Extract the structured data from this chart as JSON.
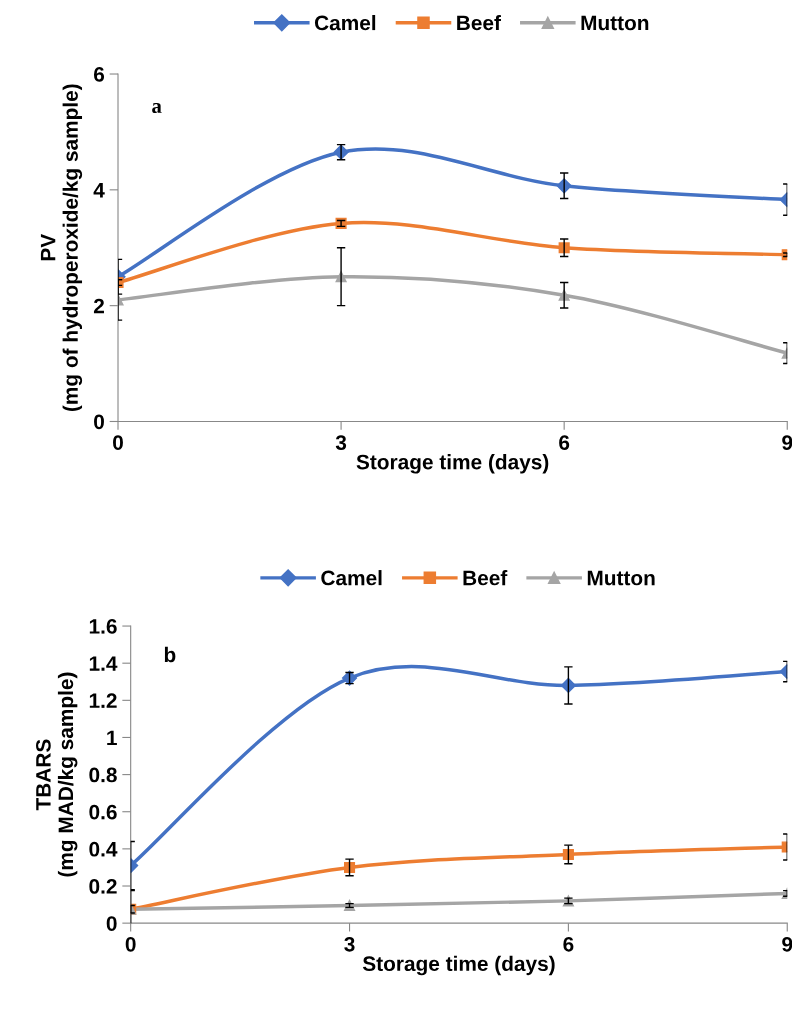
{
  "chart_data": [
    {
      "type": "line",
      "xlabel": "Storage time (days)",
      "ylabel": "PV\n(mg of hydroperoxide/kg sample)",
      "annotations": [
        "a"
      ],
      "xlim": [
        0,
        9
      ],
      "xticks": [
        0,
        3,
        6,
        9
      ],
      "ylim": [
        0,
        6
      ],
      "yticks": [
        0,
        2,
        4,
        6
      ],
      "grid": false,
      "legend": "top",
      "x": [
        0,
        3,
        6,
        9
      ],
      "series": [
        {
          "name": "Camel",
          "color": "#4472c4",
          "marker": "diamond",
          "values": [
            2.5,
            4.65,
            4.07,
            3.83
          ],
          "errors": [
            0.3,
            0.13,
            0.22,
            0.27
          ]
        },
        {
          "name": "Beef",
          "color": "#ed7d31",
          "marker": "square",
          "values": [
            2.4,
            3.42,
            3.0,
            2.88
          ],
          "errors": [
            0.05,
            0.05,
            0.15,
            0.03
          ]
        },
        {
          "name": "Mutton",
          "color": "#a5a5a5",
          "marker": "triangle",
          "values": [
            2.1,
            2.5,
            2.18,
            1.18
          ],
          "errors": [
            0.35,
            0.5,
            0.22,
            0.18
          ]
        }
      ]
    },
    {
      "type": "line",
      "xlabel": "Storage time (days)",
      "ylabel": "TBARS\n(mg MAD/kg sample)",
      "annotations": [
        "b"
      ],
      "xlim": [
        0,
        9
      ],
      "xticks": [
        0,
        3,
        6,
        9
      ],
      "ylim": [
        0,
        1.6
      ],
      "yticks": [
        {
          "value": 0,
          "label": "0"
        },
        {
          "value": 0.2,
          "label": "0.2"
        },
        {
          "value": 0.4,
          "label": "0.4"
        },
        {
          "value": 0.6,
          "label": "0.6"
        },
        {
          "value": 0.8,
          "label": "0.8"
        },
        {
          "value": 1,
          "label": "1"
        },
        {
          "value": 1.2,
          "label": "1.2"
        },
        {
          "value": 1.4,
          "label": "1.4"
        },
        {
          "value": 1.6,
          "label": "1.6"
        }
      ],
      "grid": false,
      "legend": "top",
      "x": [
        0,
        3,
        6,
        9
      ],
      "series": [
        {
          "name": "Camel",
          "color": "#4472c4",
          "marker": "diamond",
          "values": [
            0.31,
            1.32,
            1.28,
            1.355
          ],
          "errors": [
            0.13,
            0.03,
            0.1,
            0.055
          ]
        },
        {
          "name": "Beef",
          "color": "#ed7d31",
          "marker": "square",
          "values": [
            0.075,
            0.3,
            0.37,
            0.41
          ],
          "errors": [
            0.1,
            0.045,
            0.05,
            0.07
          ]
        },
        {
          "name": "Mutton",
          "color": "#a5a5a5",
          "marker": "triangle",
          "values": [
            0.075,
            0.095,
            0.12,
            0.16
          ],
          "errors": [
            0.02,
            0.01,
            0.015,
            0.015
          ]
        }
      ]
    }
  ]
}
